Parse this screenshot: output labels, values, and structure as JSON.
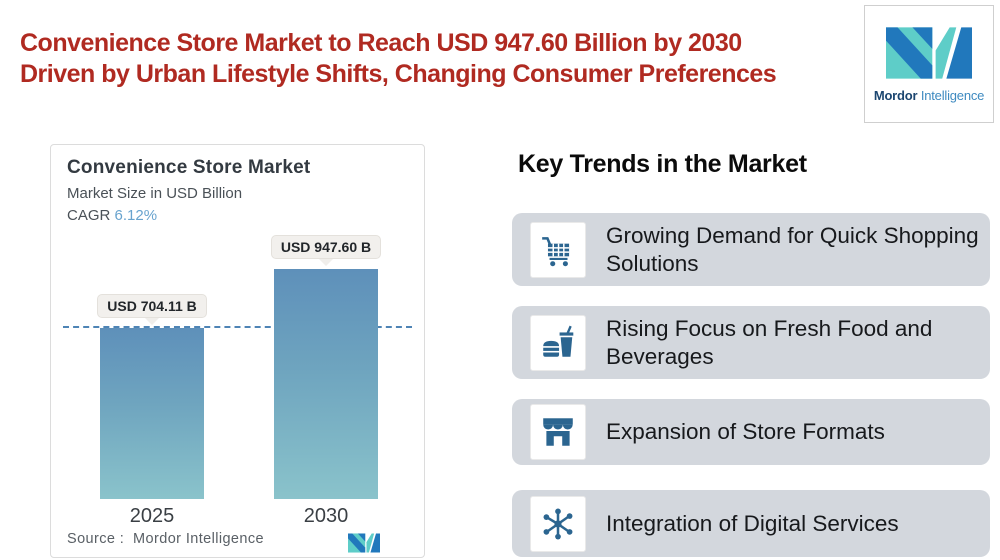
{
  "headline": {
    "line1": "Convenience Store Market to Reach USD 947.60 Billion by 2030",
    "line2": "Driven by Urban Lifestyle Shifts, Changing Consumer Preferences",
    "color": "#B02A21"
  },
  "brand": {
    "name_bold": "Mordor",
    "name_light": "Intelligence",
    "teal": "#5ECDC8",
    "blue": "#2178BC"
  },
  "chart_card": {
    "title": "Convenience Store Market",
    "subtitle": "Market Size in USD Billion",
    "cagr_label": "CAGR ",
    "cagr_value": "6.12%",
    "source": "Source :  Mordor Intelligence"
  },
  "chart_data": {
    "type": "bar",
    "categories": [
      "2025",
      "2030"
    ],
    "values": [
      704.11,
      947.6
    ],
    "value_labels": [
      "USD 704.11 B",
      "USD 947.60 B"
    ],
    "title": "Convenience Store Market",
    "ylabel": "Market Size in USD Billion",
    "cagr": "6.12%",
    "reference_line": 704.11,
    "reference_line_style": "dashed",
    "bar_gradient_top": "#5E90BA",
    "bar_gradient_bottom": "#8AC3CB",
    "dashed_line_color": "#4E84B5",
    "legend": "none",
    "grid": "off"
  },
  "trends": {
    "heading": "Key Trends in the Market",
    "card_bg": "#D3D7DD",
    "icon_color": "#2B6590",
    "items": [
      {
        "icon": "shopping-cart",
        "label": "Growing Demand for Quick Shopping Solutions"
      },
      {
        "icon": "fast-food",
        "label": "Rising Focus on Fresh Food and Beverages"
      },
      {
        "icon": "storefront",
        "label": "Expansion of Store Formats"
      },
      {
        "icon": "digital-network",
        "label": "Integration of Digital Services"
      }
    ]
  }
}
